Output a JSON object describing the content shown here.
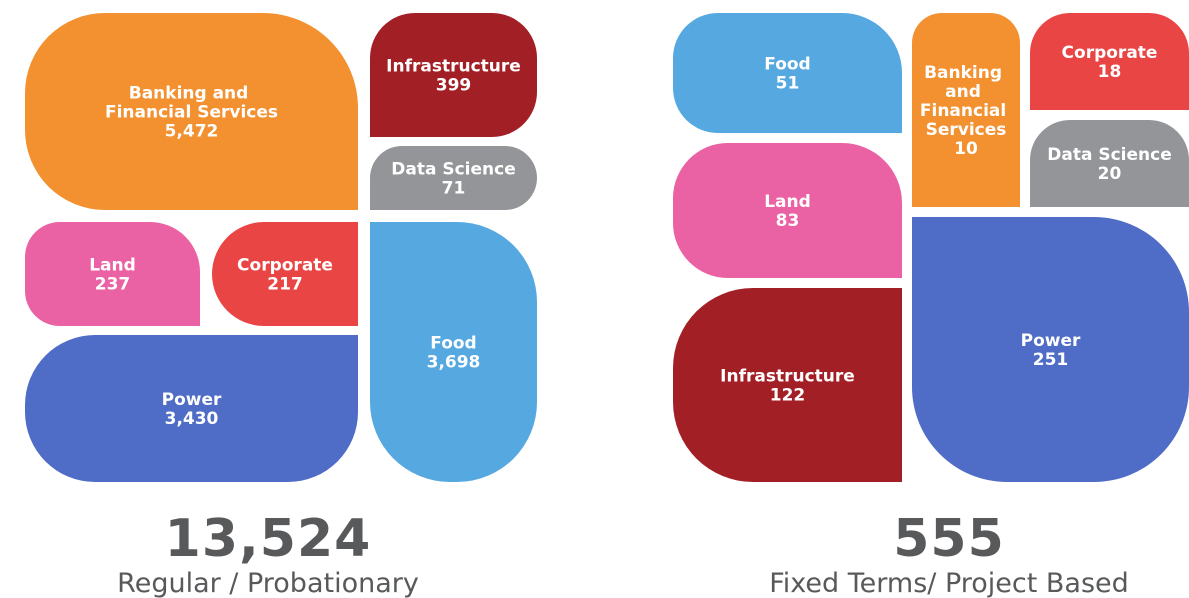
{
  "chart_data": [
    {
      "type": "treemap",
      "categories": [
        "Banking and Financial Services",
        "Infrastructure",
        "Data Science",
        "Land",
        "Corporate",
        "Power",
        "Food"
      ],
      "values": [
        5472,
        399,
        71,
        237,
        217,
        3430,
        3698
      ],
      "value_labels": [
        "5,472",
        "399",
        "71",
        "237",
        "217",
        "3,430",
        "3,698"
      ],
      "colors": [
        "#f39130",
        "#a31f26",
        "#939598",
        "#ea62a3",
        "#e94545",
        "#4f6cc7",
        "#56a8e0"
      ],
      "total": 13524,
      "total_label": "13,524",
      "subtitle": "Regular / Probationary"
    },
    {
      "type": "treemap",
      "categories": [
        "Food",
        "Banking and Financial Services",
        "Corporate",
        "Data Science",
        "Land",
        "Infrastructure",
        "Power"
      ],
      "values": [
        51,
        10,
        18,
        20,
        83,
        122,
        251
      ],
      "colors": [
        "#56a8e0",
        "#f39130",
        "#e94545",
        "#939598",
        "#ea62a3",
        "#a31f26",
        "#4f6cc7"
      ],
      "total": 555,
      "subtitle": "Fixed Terms/ Project Based"
    }
  ]
}
